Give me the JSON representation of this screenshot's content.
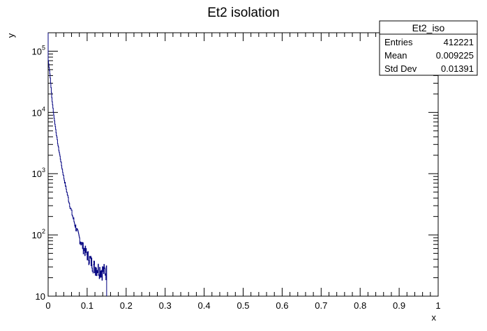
{
  "chart_data": {
    "type": "histogram",
    "title": "Et2 isolation",
    "xlabel": "x",
    "ylabel": "y",
    "xlim": [
      0,
      1
    ],
    "ylim": [
      10,
      200000
    ],
    "y_scale": "log",
    "grid": false,
    "line_color": "#000080",
    "x_ticks": [
      {
        "value": 0,
        "label": "0"
      },
      {
        "value": 0.1,
        "label": "0.1"
      },
      {
        "value": 0.2,
        "label": "0.2"
      },
      {
        "value": 0.3,
        "label": "0.3"
      },
      {
        "value": 0.4,
        "label": "0.4"
      },
      {
        "value": 0.5,
        "label": "0.5"
      },
      {
        "value": 0.6,
        "label": "0.6"
      },
      {
        "value": 0.7,
        "label": "0.7"
      },
      {
        "value": 0.8,
        "label": "0.8"
      },
      {
        "value": 0.9,
        "label": "0.9"
      },
      {
        "value": 1,
        "label": "1"
      }
    ],
    "y_ticks": [
      {
        "value": 10,
        "base": "10",
        "exp": ""
      },
      {
        "value": 100,
        "base": "10",
        "exp": "2"
      },
      {
        "value": 1000,
        "base": "10",
        "exp": "3"
      },
      {
        "value": 10000,
        "base": "10",
        "exp": "4"
      },
      {
        "value": 100000,
        "base": "10",
        "exp": "5"
      }
    ],
    "series": [
      {
        "bin_width": 0.001,
        "x": [
          0.0,
          0.005,
          0.01,
          0.015,
          0.02,
          0.025,
          0.03,
          0.035,
          0.04,
          0.045,
          0.05,
          0.055,
          0.06,
          0.065,
          0.07,
          0.075,
          0.08,
          0.085,
          0.09,
          0.095,
          0.1,
          0.105,
          0.11,
          0.115,
          0.12,
          0.125,
          0.13,
          0.135,
          0.14,
          0.145,
          0.15,
          0.152
        ],
        "y": [
          75000,
          40000,
          16000,
          8500,
          5000,
          3000,
          2000,
          1300,
          880,
          620,
          440,
          320,
          240,
          180,
          140,
          110,
          90,
          75,
          62,
          55,
          48,
          42,
          37,
          33,
          30,
          29,
          28,
          27,
          26,
          26,
          25,
          0
        ]
      }
    ],
    "legend": {
      "position": "top-right",
      "title": "Et2_iso",
      "rows": [
        {
          "label": "Entries",
          "value": "412221"
        },
        {
          "label": "Mean",
          "value": "0.009225"
        },
        {
          "label": "Std Dev",
          "value": "0.01391"
        }
      ]
    }
  }
}
